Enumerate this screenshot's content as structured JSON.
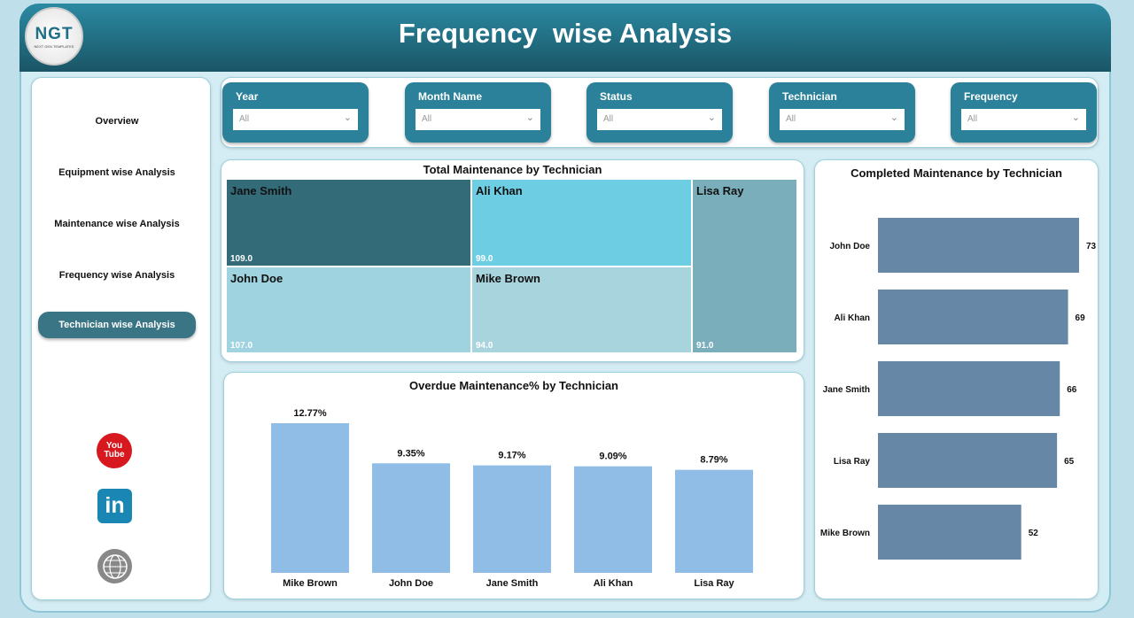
{
  "header": {
    "title": "Frequency  wise Analysis",
    "logo_text": "NGT",
    "logo_sub": "NEXT GEN TEMPLATES"
  },
  "sidebar": {
    "items": [
      {
        "label": "Overview"
      },
      {
        "label": "Equipment wise Analysis"
      },
      {
        "label": "Maintenance wise Analysis"
      },
      {
        "label": "Frequency wise Analysis"
      },
      {
        "label": "Technician wise Analysis",
        "active": true
      }
    ],
    "social": [
      "youtube-icon",
      "linkedin-icon",
      "globe-icon"
    ]
  },
  "filters": [
    {
      "label": "Year",
      "value": "All"
    },
    {
      "label": "Month Name",
      "value": "All"
    },
    {
      "label": "Status",
      "value": "All"
    },
    {
      "label": "Technician",
      "value": "All"
    },
    {
      "label": "Frequency",
      "value": "All"
    }
  ],
  "colors": {
    "header": "#2a8199",
    "active_nav": "#3a7585",
    "overdue_bar": "#8fbde6",
    "completed_bar": "#6688a6"
  },
  "chart_data": [
    {
      "type": "treemap",
      "title": "Total Maintenance by Technician",
      "items": [
        {
          "name": "Jane Smith",
          "value": 109.0,
          "label": "109.0",
          "color": "#336b79"
        },
        {
          "name": "John Doe",
          "value": 107.0,
          "label": "107.0",
          "color": "#9fd3e0"
        },
        {
          "name": "Ali Khan",
          "value": 99.0,
          "label": "99.0",
          "color": "#6ccde3"
        },
        {
          "name": "Mike Brown",
          "value": 94.0,
          "label": "94.0",
          "color": "#a8d4de"
        },
        {
          "name": "Lisa Ray",
          "value": 91.0,
          "label": "91.0",
          "color": "#7aaebb"
        }
      ]
    },
    {
      "type": "bar",
      "title": "Overdue Maintenance% by Technician",
      "categories": [
        "Mike Brown",
        "John Doe",
        "Jane Smith",
        "Ali Khan",
        "Lisa Ray"
      ],
      "values": [
        12.77,
        9.35,
        9.17,
        9.09,
        8.79
      ],
      "labels": [
        "12.77%",
        "9.35%",
        "9.17%",
        "9.09%",
        "8.79%"
      ]
    },
    {
      "type": "bar",
      "orientation": "horizontal",
      "title": "Completed Maintenance by Technician",
      "categories": [
        "John Doe",
        "Ali Khan",
        "Jane Smith",
        "Lisa Ray",
        "Mike Brown"
      ],
      "values": [
        73,
        69,
        66,
        65,
        52
      ]
    }
  ]
}
